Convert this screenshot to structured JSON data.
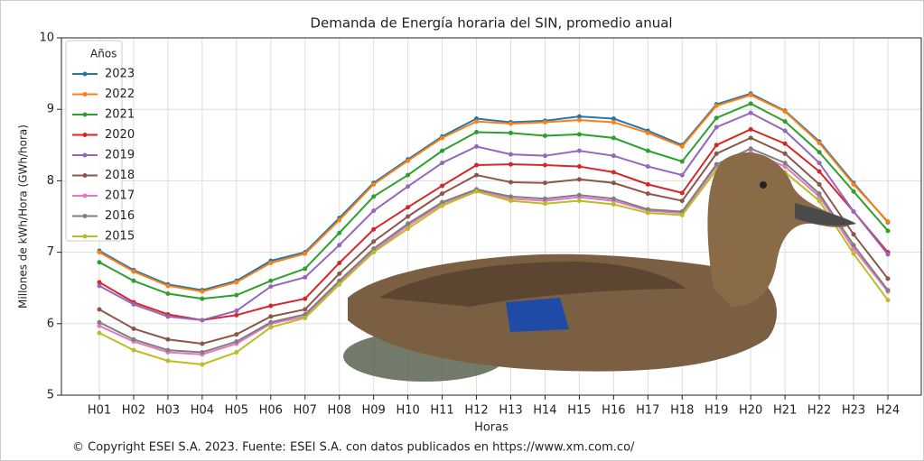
{
  "chart_data": {
    "type": "line",
    "title": "Demanda de Energía horaria del SIN, promedio anual",
    "x_label": "Horas",
    "y_label": "Millones de kWh/Hora (GWh/hora)",
    "footer": "© Copyright ESEI S.A. 2023. Fuente: ESEI S.A. con datos publicados en https://www.xm.com.co/",
    "legend_title": "Años",
    "legend_position": "upper left",
    "grid": true,
    "categories": [
      "H01",
      "H02",
      "H03",
      "H04",
      "H05",
      "H06",
      "H07",
      "H08",
      "H09",
      "H10",
      "H11",
      "H12",
      "H13",
      "H14",
      "H15",
      "H16",
      "H17",
      "H18",
      "H19",
      "H20",
      "H21",
      "H22",
      "H23",
      "H24"
    ],
    "ylim": [
      5,
      10
    ],
    "yticks": [
      5,
      6,
      7,
      8,
      9,
      10
    ],
    "series": [
      {
        "name": "2023",
        "color": "#1f77b4",
        "values": [
          7.02,
          6.75,
          6.55,
          6.47,
          6.6,
          6.88,
          7.0,
          7.48,
          7.97,
          8.3,
          8.62,
          8.87,
          8.82,
          8.84,
          8.9,
          8.87,
          8.7,
          8.5,
          9.07,
          9.22,
          8.98,
          8.55,
          7.97,
          7.42
        ]
      },
      {
        "name": "2022",
        "color": "#ff7f0e",
        "values": [
          7.0,
          6.73,
          6.53,
          6.45,
          6.58,
          6.85,
          6.98,
          7.45,
          7.95,
          8.28,
          8.6,
          8.83,
          8.8,
          8.82,
          8.85,
          8.82,
          8.67,
          8.48,
          9.05,
          9.2,
          8.97,
          8.53,
          7.95,
          7.43
        ]
      },
      {
        "name": "2021",
        "color": "#2ca02c",
        "values": [
          6.86,
          6.6,
          6.42,
          6.35,
          6.4,
          6.6,
          6.77,
          7.27,
          7.78,
          8.08,
          8.42,
          8.68,
          8.67,
          8.63,
          8.65,
          8.6,
          8.42,
          8.27,
          8.88,
          9.08,
          8.83,
          8.4,
          7.85,
          7.3
        ]
      },
      {
        "name": "2020",
        "color": "#d62728",
        "values": [
          6.58,
          6.3,
          6.13,
          6.05,
          6.12,
          6.25,
          6.35,
          6.85,
          7.32,
          7.63,
          7.93,
          8.22,
          8.23,
          8.22,
          8.2,
          8.12,
          7.95,
          7.83,
          8.5,
          8.72,
          8.52,
          8.13,
          7.57,
          7.0
        ]
      },
      {
        "name": "2019",
        "color": "#9467bd",
        "values": [
          6.53,
          6.27,
          6.1,
          6.05,
          6.18,
          6.52,
          6.65,
          7.1,
          7.58,
          7.92,
          8.25,
          8.48,
          8.37,
          8.35,
          8.42,
          8.35,
          8.2,
          8.08,
          8.75,
          8.95,
          8.7,
          8.25,
          7.57,
          6.97
        ]
      },
      {
        "name": "2018",
        "color": "#8c564b",
        "values": [
          6.2,
          5.93,
          5.78,
          5.72,
          5.85,
          6.1,
          6.2,
          6.7,
          7.15,
          7.5,
          7.82,
          8.08,
          7.98,
          7.97,
          8.02,
          7.97,
          7.82,
          7.72,
          8.38,
          8.6,
          8.38,
          7.95,
          7.25,
          6.63
        ]
      },
      {
        "name": "2017",
        "color": "#e377c2",
        "values": [
          5.97,
          5.75,
          5.6,
          5.57,
          5.72,
          6.0,
          6.1,
          6.57,
          7.02,
          7.37,
          7.68,
          7.87,
          7.75,
          7.72,
          7.77,
          7.72,
          7.58,
          7.55,
          8.2,
          8.4,
          8.2,
          7.78,
          7.05,
          6.45
        ]
      },
      {
        "name": "2016",
        "color": "#7f7f7f",
        "values": [
          6.02,
          5.78,
          5.63,
          5.6,
          5.75,
          6.02,
          6.13,
          6.6,
          7.05,
          7.4,
          7.7,
          7.88,
          7.78,
          7.75,
          7.8,
          7.75,
          7.6,
          7.57,
          8.23,
          8.45,
          8.25,
          7.82,
          7.1,
          6.47
        ]
      },
      {
        "name": "2015",
        "color": "#bcbd22",
        "values": [
          5.87,
          5.63,
          5.48,
          5.43,
          5.6,
          5.95,
          6.08,
          6.55,
          7.0,
          7.33,
          7.65,
          7.85,
          7.72,
          7.68,
          7.72,
          7.67,
          7.55,
          7.52,
          8.15,
          8.35,
          8.12,
          7.72,
          6.98,
          6.33
        ]
      }
    ]
  }
}
